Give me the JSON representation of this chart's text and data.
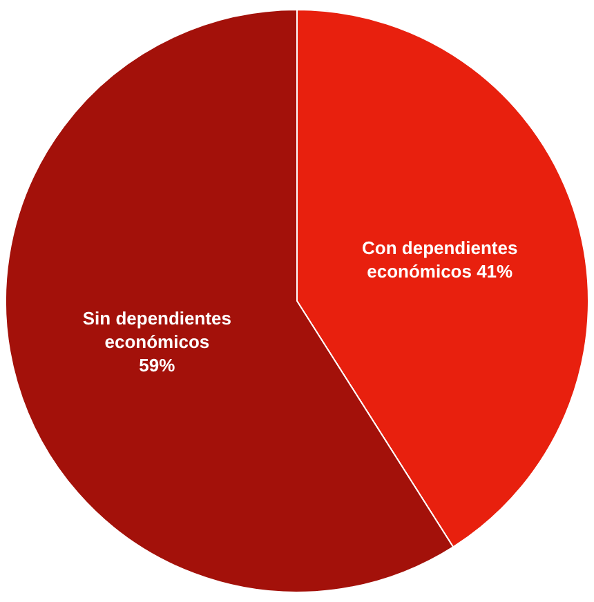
{
  "chart_data": {
    "type": "pie",
    "categories": [
      "Con dependientes económicos",
      "Sin dependientes económicos"
    ],
    "values": [
      41,
      59
    ],
    "colors": [
      "#e8200e",
      "#a3110a"
    ],
    "value_labels": [
      "41%",
      "59%"
    ],
    "legend": false
  }
}
